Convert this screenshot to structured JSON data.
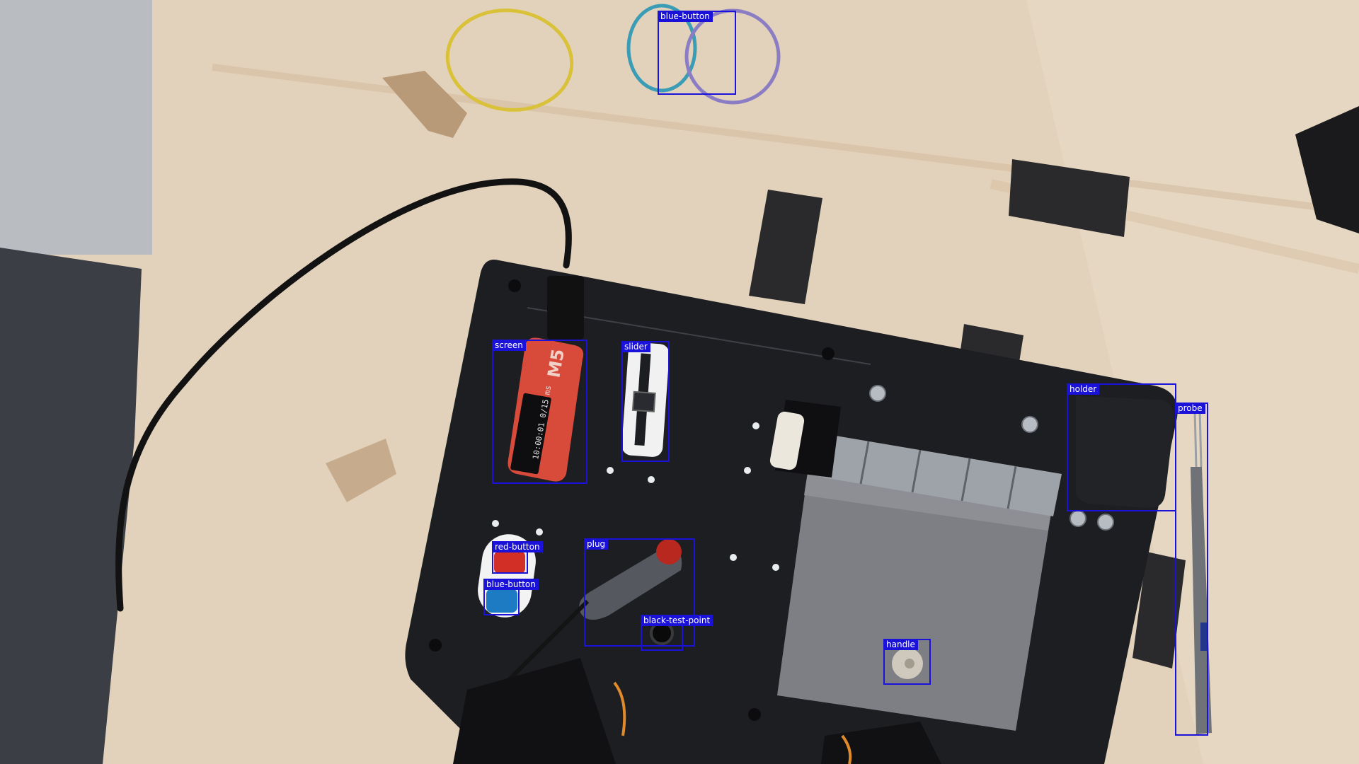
{
  "detections": [
    {
      "label": "blue-button"
    },
    {
      "label": "screen"
    },
    {
      "label": "slider"
    },
    {
      "label": "holder"
    },
    {
      "label": "probe"
    },
    {
      "label": "red-button"
    },
    {
      "label": "blue-button"
    },
    {
      "label": "plug"
    },
    {
      "label": "black-test-point"
    },
    {
      "label": "handle"
    }
  ],
  "screen_device": {
    "logo_text": "M5",
    "display_text": "10:00:01 0/15 ms"
  },
  "colors": {
    "box_outline": "#1a12d8",
    "box_label_bg": "#1a12d8",
    "box_label_text": "#ffffff",
    "table": "#e3d2bb",
    "board": "#1d1e22",
    "device_red": "#d84a3a",
    "button_red": "#d23027",
    "button_blue": "#1c7bc2"
  }
}
